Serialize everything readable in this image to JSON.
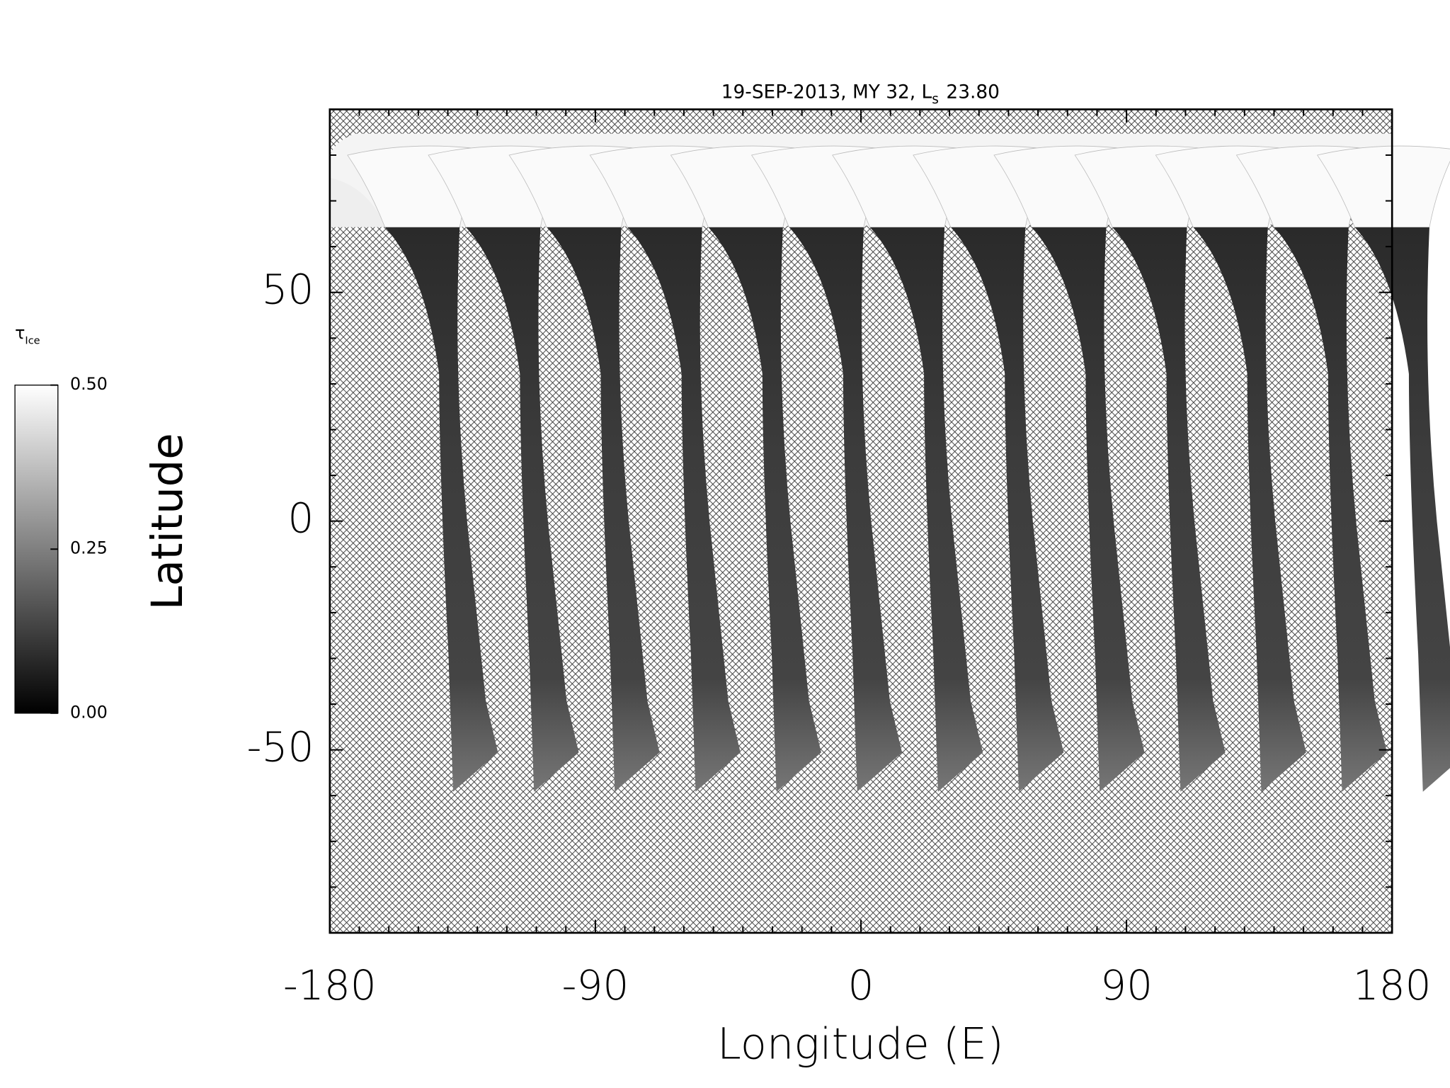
{
  "chart_data": {
    "type": "map",
    "title": "19-SEP-2013, MY 32,  L",
    "title_subscript": "s",
    "title_value": "23.80",
    "x_label": "Longitude (E)",
    "y_label": "Latitude",
    "xlim": [
      -180,
      180
    ],
    "xticks": [
      -180,
      -90,
      0,
      90,
      180
    ],
    "xminorticks": [
      -170,
      -160,
      -150,
      -140,
      -130,
      -120,
      -110,
      -100,
      -80,
      -70,
      -60,
      -50,
      -40,
      -30,
      -20,
      -10,
      10,
      20,
      30,
      40,
      50,
      60,
      70,
      80,
      100,
      110,
      120,
      130,
      140,
      150,
      160,
      170
    ],
    "ylim": [
      -90,
      90
    ],
    "yticks": [
      -50,
      0,
      50
    ],
    "yminorticks": [
      -80,
      -70,
      -60,
      -40,
      -30,
      -20,
      -10,
      10,
      20,
      30,
      40,
      60,
      70,
      80
    ],
    "colorbar": {
      "label": "τ",
      "label_subscript": "Ice",
      "lim": [
        0,
        0.5
      ],
      "ticks": [
        {
          "value": 0,
          "label": "0.00"
        },
        {
          "value": 0.25,
          "label": "0.25"
        },
        {
          "value": 0.5,
          "label": "0.50"
        }
      ],
      "colors": [
        "#000000",
        "#ffffff"
      ]
    }
  }
}
